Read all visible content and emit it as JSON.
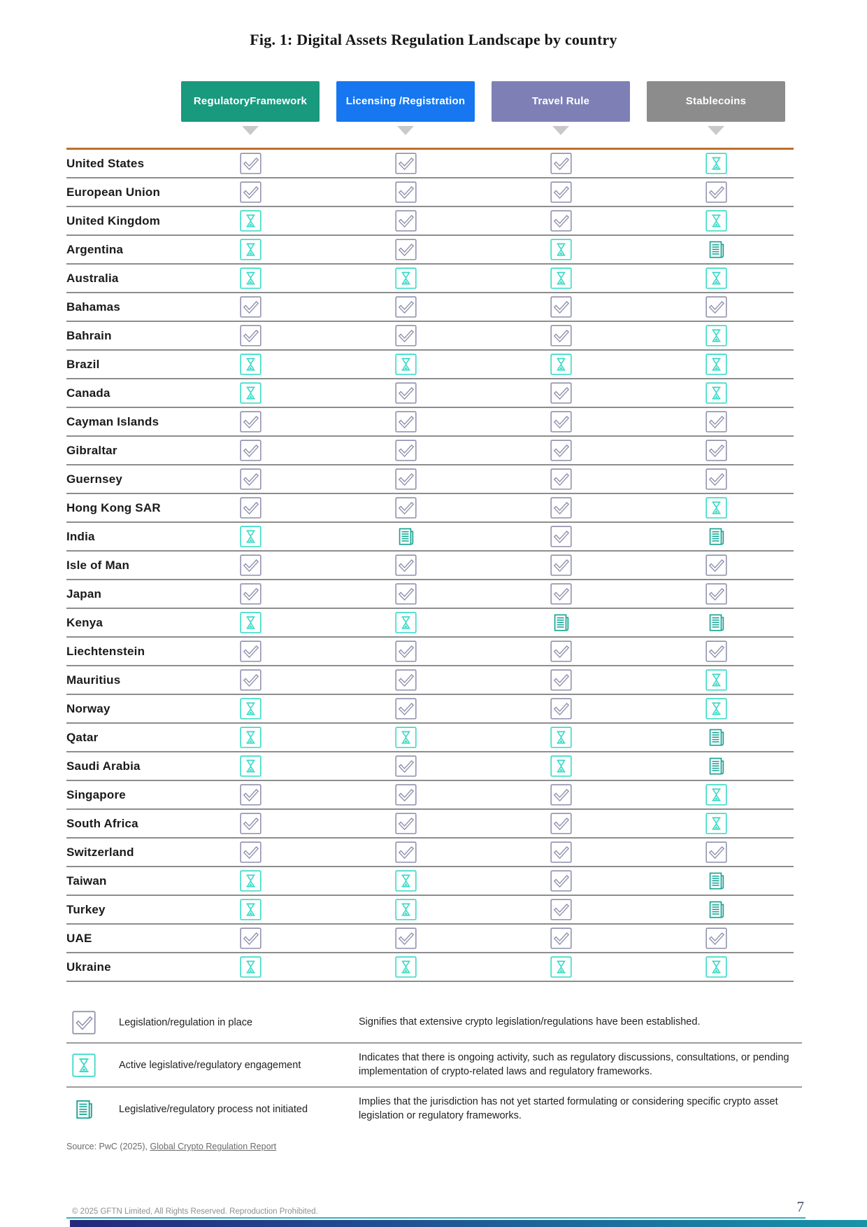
{
  "page": {
    "title": "Fig. 1: Digital Assets Regulation Landscape by country",
    "page_number": "7",
    "footer_copyright": "© 2025 GFTN Limited, All Rights Reserved. Reproduction Prohibited.",
    "source_prefix": "Source: PwC (2025), ",
    "source_link": "Global Crypto Regulation Report"
  },
  "columns": [
    {
      "id": "regulatory-framework",
      "lines": [
        "Regulatory",
        "Framework"
      ],
      "color": "#19997e"
    },
    {
      "id": "licensing-registration",
      "lines": [
        "Licensing /",
        "Registration"
      ],
      "color": "#1677f0"
    },
    {
      "id": "travel-rule",
      "lines": [
        "Travel Rule"
      ],
      "color": "#7e80b5"
    },
    {
      "id": "stablecoins",
      "lines": [
        "Stablecoins"
      ],
      "color": "#8c8c8c"
    }
  ],
  "statuses": {
    "check": {
      "semantic": "legislation-in-place",
      "color": "#8f8fae"
    },
    "hourglass": {
      "semantic": "active-legislative-engagement",
      "color": "#35d9c5"
    },
    "doc": {
      "semantic": "process-not-initiated",
      "color": "#14a392"
    }
  },
  "rows": [
    {
      "country": "United States",
      "cells": [
        "check",
        "check",
        "check",
        "hourglass"
      ]
    },
    {
      "country": "European Union",
      "cells": [
        "check",
        "check",
        "check",
        "check"
      ]
    },
    {
      "country": "United Kingdom",
      "cells": [
        "hourglass",
        "check",
        "check",
        "hourglass"
      ]
    },
    {
      "country": "Argentina",
      "cells": [
        "hourglass",
        "check",
        "hourglass",
        "doc"
      ]
    },
    {
      "country": "Australia",
      "cells": [
        "hourglass",
        "hourglass",
        "hourglass",
        "hourglass"
      ]
    },
    {
      "country": "Bahamas",
      "cells": [
        "check",
        "check",
        "check",
        "check"
      ]
    },
    {
      "country": "Bahrain",
      "cells": [
        "check",
        "check",
        "check",
        "hourglass"
      ]
    },
    {
      "country": "Brazil",
      "cells": [
        "hourglass",
        "hourglass",
        "hourglass",
        "hourglass"
      ]
    },
    {
      "country": "Canada",
      "cells": [
        "hourglass",
        "check",
        "check",
        "hourglass"
      ]
    },
    {
      "country": "Cayman Islands",
      "cells": [
        "check",
        "check",
        "check",
        "check"
      ]
    },
    {
      "country": "Gibraltar",
      "cells": [
        "check",
        "check",
        "check",
        "check"
      ]
    },
    {
      "country": "Guernsey",
      "cells": [
        "check",
        "check",
        "check",
        "check"
      ]
    },
    {
      "country": "Hong Kong SAR",
      "cells": [
        "check",
        "check",
        "check",
        "hourglass"
      ]
    },
    {
      "country": "India",
      "cells": [
        "hourglass",
        "doc",
        "check",
        "doc"
      ]
    },
    {
      "country": "Isle of Man",
      "cells": [
        "check",
        "check",
        "check",
        "check"
      ]
    },
    {
      "country": "Japan",
      "cells": [
        "check",
        "check",
        "check",
        "check"
      ]
    },
    {
      "country": "Kenya",
      "cells": [
        "hourglass",
        "hourglass",
        "doc",
        "doc"
      ]
    },
    {
      "country": "Liechtenstein",
      "cells": [
        "check",
        "check",
        "check",
        "check"
      ]
    },
    {
      "country": "Mauritius",
      "cells": [
        "check",
        "check",
        "check",
        "hourglass"
      ]
    },
    {
      "country": "Norway",
      "cells": [
        "hourglass",
        "check",
        "check",
        "hourglass"
      ]
    },
    {
      "country": "Qatar",
      "cells": [
        "hourglass",
        "hourglass",
        "hourglass",
        "doc"
      ]
    },
    {
      "country": "Saudi Arabia",
      "cells": [
        "hourglass",
        "check",
        "hourglass",
        "doc"
      ]
    },
    {
      "country": "Singapore",
      "cells": [
        "check",
        "check",
        "check",
        "hourglass"
      ]
    },
    {
      "country": "South Africa",
      "cells": [
        "check",
        "check",
        "check",
        "hourglass"
      ]
    },
    {
      "country": "Switzerland",
      "cells": [
        "check",
        "check",
        "check",
        "check"
      ]
    },
    {
      "country": "Taiwan",
      "cells": [
        "hourglass",
        "hourglass",
        "check",
        "doc"
      ]
    },
    {
      "country": "Turkey",
      "cells": [
        "hourglass",
        "hourglass",
        "check",
        "doc"
      ]
    },
    {
      "country": "UAE",
      "cells": [
        "check",
        "check",
        "check",
        "check"
      ]
    },
    {
      "country": "Ukraine",
      "cells": [
        "hourglass",
        "hourglass",
        "hourglass",
        "hourglass"
      ]
    }
  ],
  "legend": [
    {
      "icon": "check",
      "label": "Legislation/regulation in place",
      "description": "Signifies that extensive crypto legislation/regulations have been established."
    },
    {
      "icon": "hourglass",
      "label": "Active legislative/regulatory engagement",
      "description": "Indicates that there is ongoing activity, such as regulatory discussions, consultations, or pending implementation of crypto-related laws and regulatory frameworks."
    },
    {
      "icon": "doc",
      "label": "Legislative/regulatory process not initiated",
      "description": "Implies that the jurisdiction has not yet started formulating or considering specific crypto asset legislation or regulatory frameworks."
    }
  ]
}
